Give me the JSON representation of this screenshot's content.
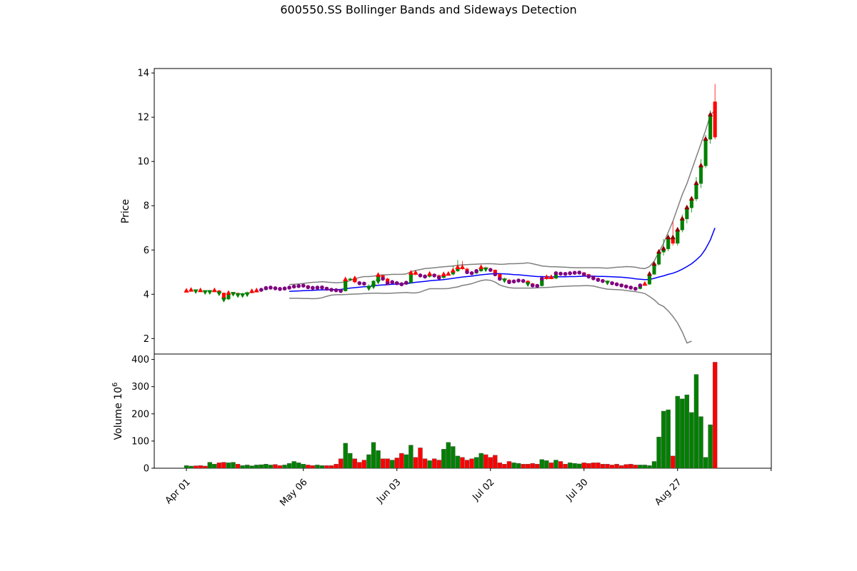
{
  "chart_data": [
    {
      "type": "candlestick",
      "title": "600550.SS Bollinger Bands and Sideways Detection",
      "ylabel": "Price",
      "ylim": [
        1.3,
        14.2
      ],
      "yticks": [
        2,
        4,
        6,
        8,
        10,
        12,
        14
      ],
      "xtick_labels": [
        "Apr 01",
        "May 06",
        "Jun 03",
        "Jul 02",
        "Jul 30",
        "Aug 27",
        ""
      ],
      "xtick_index": [
        0,
        25,
        45,
        65,
        85,
        105,
        125
      ],
      "grid": false,
      "colors": {
        "up": "#008000",
        "down": "#ff0000",
        "middle_band": "#0000ff",
        "outer_band": "#808080",
        "buy_marker": "#ff0000",
        "sell_marker": "#008000",
        "sideways_marker": "#800080",
        "breakout_marker": "#8b0000"
      },
      "close": [
        4.14,
        4.18,
        4.16,
        4.14,
        4.12,
        4.15,
        4.16,
        4.06,
        3.78,
        4.04,
        4.05,
        3.98,
        4.02,
        4.08,
        4.12,
        4.15,
        4.2,
        4.28,
        4.3,
        4.27,
        4.24,
        4.26,
        4.3,
        4.35,
        4.37,
        4.39,
        4.32,
        4.29,
        4.3,
        4.31,
        4.25,
        4.2,
        4.18,
        4.15,
        4.65,
        4.7,
        4.55,
        4.5,
        4.48,
        4.38,
        4.6,
        4.85,
        4.7,
        4.5,
        4.55,
        4.5,
        4.45,
        4.52,
        4.95,
        4.9,
        4.85,
        4.8,
        4.9,
        4.85,
        4.75,
        4.88,
        4.9,
        5.05,
        5.2,
        5.15,
        5.0,
        4.95,
        5.05,
        5.2,
        5.15,
        5.1,
        4.9,
        4.7,
        4.65,
        4.55,
        4.58,
        4.62,
        4.6,
        4.48,
        4.4,
        4.38,
        4.7,
        4.75,
        4.72,
        4.95,
        4.93,
        4.92,
        4.95,
        4.97,
        4.98,
        4.9,
        4.8,
        4.72,
        4.65,
        4.6,
        4.55,
        4.5,
        4.45,
        4.4,
        4.35,
        4.3,
        4.25,
        4.4,
        4.45,
        4.9,
        5.35,
        5.9,
        6.05,
        6.55,
        6.3,
        6.9,
        7.4,
        7.9,
        8.3,
        9.0,
        9.8,
        11.0,
        12.1,
        11.1
      ],
      "open": [
        4.14,
        4.16,
        4.18,
        4.16,
        4.14,
        4.12,
        4.15,
        4.16,
        4.06,
        3.78,
        4.04,
        4.05,
        3.98,
        4.02,
        4.08,
        4.12,
        4.15,
        4.2,
        4.28,
        4.3,
        4.27,
        4.24,
        4.26,
        4.3,
        4.35,
        4.37,
        4.39,
        4.32,
        4.29,
        4.3,
        4.31,
        4.25,
        4.2,
        4.18,
        4.15,
        4.65,
        4.7,
        4.55,
        4.5,
        4.3,
        4.38,
        4.6,
        4.85,
        4.7,
        4.5,
        4.55,
        4.5,
        4.45,
        4.52,
        4.95,
        4.9,
        4.85,
        4.8,
        4.9,
        4.85,
        4.75,
        4.88,
        4.9,
        5.05,
        5.2,
        5.15,
        5.0,
        4.95,
        5.05,
        5.2,
        5.15,
        5.1,
        4.9,
        4.7,
        4.65,
        4.55,
        4.58,
        4.62,
        4.6,
        4.48,
        4.4,
        4.38,
        4.7,
        4.75,
        4.72,
        4.95,
        4.93,
        4.92,
        4.95,
        4.97,
        4.98,
        4.9,
        4.8,
        4.72,
        4.65,
        4.6,
        4.55,
        4.5,
        4.45,
        4.4,
        4.35,
        4.3,
        4.25,
        4.4,
        4.45,
        4.9,
        5.35,
        5.9,
        6.05,
        6.55,
        6.3,
        6.9,
        7.4,
        7.9,
        8.3,
        9.0,
        9.8,
        11.0,
        12.7
      ],
      "high": [
        4.2,
        4.22,
        4.22,
        4.2,
        4.18,
        4.2,
        4.22,
        4.2,
        4.08,
        4.1,
        4.1,
        4.08,
        4.06,
        4.12,
        4.16,
        4.2,
        4.24,
        4.32,
        4.34,
        4.33,
        4.3,
        4.3,
        4.34,
        4.38,
        4.4,
        4.42,
        4.42,
        4.35,
        4.33,
        4.35,
        4.34,
        4.28,
        4.24,
        4.22,
        4.7,
        4.75,
        4.73,
        4.6,
        4.55,
        4.45,
        4.65,
        4.95,
        4.88,
        4.75,
        4.6,
        4.6,
        4.55,
        4.56,
        5.05,
        5.0,
        4.95,
        4.9,
        4.95,
        4.92,
        4.9,
        4.93,
        4.98,
        5.3,
        5.55,
        5.5,
        5.2,
        5.05,
        5.1,
        5.25,
        5.25,
        5.2,
        5.12,
        4.95,
        4.75,
        4.7,
        4.62,
        4.66,
        4.68,
        4.64,
        4.52,
        4.45,
        4.75,
        4.8,
        4.78,
        5.0,
        4.98,
        4.97,
        4.99,
        5.01,
        5.02,
        5.0,
        4.92,
        4.84,
        4.76,
        4.68,
        4.63,
        4.58,
        4.53,
        4.48,
        4.42,
        4.38,
        4.33,
        4.44,
        4.5,
        4.95,
        5.45,
        6.0,
        6.5,
        6.7,
        7.3,
        7.0,
        7.6,
        8.0,
        8.4,
        9.3,
        10.1,
        11.2,
        12.3,
        13.5
      ],
      "low": [
        4.1,
        4.12,
        4.12,
        4.1,
        4.08,
        4.08,
        4.1,
        4.02,
        3.7,
        3.74,
        3.98,
        3.94,
        3.94,
        3.98,
        4.04,
        4.08,
        4.12,
        4.18,
        4.25,
        4.22,
        4.2,
        4.2,
        4.24,
        4.28,
        4.32,
        4.34,
        4.28,
        4.26,
        4.26,
        4.27,
        4.22,
        4.17,
        4.14,
        4.12,
        4.12,
        4.6,
        4.5,
        4.45,
        4.44,
        4.25,
        4.34,
        4.55,
        4.65,
        4.45,
        4.45,
        4.45,
        4.4,
        4.42,
        4.48,
        4.85,
        4.8,
        4.75,
        4.75,
        4.8,
        4.7,
        4.7,
        4.85,
        4.85,
        5.0,
        5.1,
        4.95,
        4.9,
        4.9,
        5.0,
        5.1,
        5.05,
        4.85,
        4.65,
        4.6,
        4.5,
        4.52,
        4.55,
        4.55,
        4.45,
        4.35,
        4.33,
        4.35,
        4.65,
        4.68,
        4.68,
        4.88,
        4.88,
        4.88,
        4.9,
        4.92,
        4.88,
        4.78,
        4.7,
        4.62,
        4.57,
        4.52,
        4.47,
        4.42,
        4.37,
        4.32,
        4.27,
        4.22,
        4.22,
        4.38,
        4.43,
        4.88,
        5.3,
        5.75,
        5.95,
        6.2,
        6.2,
        6.8,
        7.2,
        7.7,
        8.2,
        8.8,
        9.7,
        10.8,
        11.0
      ],
      "middle_band": [
        null,
        null,
        null,
        null,
        null,
        null,
        null,
        null,
        null,
        null,
        null,
        null,
        null,
        null,
        null,
        null,
        null,
        null,
        null,
        null,
        null,
        null,
        4.13,
        4.14,
        4.15,
        4.16,
        4.17,
        4.18,
        4.19,
        4.2,
        4.2,
        4.21,
        4.21,
        4.22,
        4.25,
        4.28,
        4.3,
        4.32,
        4.34,
        4.35,
        4.38,
        4.41,
        4.42,
        4.43,
        4.45,
        4.46,
        4.47,
        4.48,
        4.51,
        4.54,
        4.56,
        4.58,
        4.61,
        4.63,
        4.64,
        4.66,
        4.69,
        4.72,
        4.75,
        4.78,
        4.8,
        4.82,
        4.85,
        4.88,
        4.9,
        4.92,
        4.93,
        4.93,
        4.92,
        4.91,
        4.89,
        4.88,
        4.86,
        4.84,
        4.82,
        4.8,
        4.8,
        4.79,
        4.78,
        4.79,
        4.79,
        4.79,
        4.8,
        4.8,
        4.81,
        4.82,
        4.82,
        4.82,
        4.81,
        4.81,
        4.8,
        4.79,
        4.78,
        4.77,
        4.75,
        4.73,
        4.7,
        4.68,
        4.66,
        4.67,
        4.72,
        4.78,
        4.83,
        4.9,
        4.95,
        5.03,
        5.13,
        5.25,
        5.38,
        5.55,
        5.75,
        6.05,
        6.45,
        7.0
      ],
      "upper_band": [
        null,
        null,
        null,
        null,
        null,
        null,
        null,
        null,
        null,
        null,
        null,
        null,
        null,
        null,
        null,
        null,
        null,
        null,
        null,
        null,
        null,
        null,
        4.44,
        4.45,
        4.47,
        4.49,
        4.52,
        4.54,
        4.55,
        4.57,
        4.55,
        4.53,
        4.52,
        4.53,
        4.55,
        4.62,
        4.7,
        4.76,
        4.8,
        4.8,
        4.82,
        4.85,
        4.88,
        4.88,
        4.9,
        4.9,
        4.9,
        4.92,
        5.02,
        5.08,
        5.12,
        5.16,
        5.18,
        5.2,
        5.22,
        5.24,
        5.26,
        5.28,
        5.31,
        5.33,
        5.34,
        5.35,
        5.36,
        5.37,
        5.38,
        5.38,
        5.37,
        5.35,
        5.36,
        5.38,
        5.38,
        5.39,
        5.4,
        5.42,
        5.38,
        5.33,
        5.28,
        5.26,
        5.24,
        5.24,
        5.23,
        5.22,
        5.21,
        5.2,
        5.2,
        5.2,
        5.2,
        5.2,
        5.2,
        5.19,
        5.18,
        5.2,
        5.22,
        5.23,
        5.25,
        5.24,
        5.22,
        5.18,
        5.16,
        5.25,
        5.5,
        5.9,
        6.3,
        6.8,
        7.3,
        7.9,
        8.5,
        9.0,
        9.6,
        10.2,
        10.8,
        11.4,
        12.1,
        12.3
      ],
      "lower_band": [
        null,
        null,
        null,
        null,
        null,
        null,
        null,
        null,
        null,
        null,
        null,
        null,
        null,
        null,
        null,
        null,
        null,
        null,
        null,
        null,
        null,
        null,
        3.82,
        3.82,
        3.82,
        3.81,
        3.81,
        3.8,
        3.81,
        3.84,
        3.91,
        3.96,
        3.98,
        3.98,
        3.99,
        4.0,
        4.01,
        4.02,
        4.03,
        4.04,
        4.05,
        4.05,
        4.04,
        4.04,
        4.05,
        4.06,
        4.07,
        4.08,
        4.06,
        4.06,
        4.1,
        4.18,
        4.25,
        4.25,
        4.25,
        4.25,
        4.26,
        4.3,
        4.33,
        4.4,
        4.43,
        4.48,
        4.55,
        4.62,
        4.65,
        4.63,
        4.55,
        4.42,
        4.35,
        4.3,
        4.28,
        4.28,
        4.28,
        4.28,
        4.28,
        4.29,
        4.3,
        4.31,
        4.32,
        4.34,
        4.35,
        4.36,
        4.37,
        4.38,
        4.38,
        4.39,
        4.39,
        4.37,
        4.32,
        4.27,
        4.23,
        4.22,
        4.21,
        4.2,
        4.17,
        4.14,
        4.12,
        4.08,
        4.03,
        3.9,
        3.75,
        3.55,
        3.45,
        3.25,
        3.0,
        2.7,
        2.3,
        1.8,
        1.88,
        null,
        null,
        null,
        null,
        null
      ],
      "signals": {
        "buy": [
          0,
          1,
          3,
          6,
          9,
          14,
          15,
          34,
          36,
          41,
          48,
          49,
          52,
          55,
          56,
          57,
          58,
          59,
          63,
          77,
          78,
          98
        ],
        "sell": [
          2,
          4,
          5,
          7,
          8,
          10,
          11,
          12,
          13,
          39,
          40,
          41,
          64,
          68,
          73,
          90
        ],
        "sideways": [
          16,
          17,
          18,
          19,
          20,
          21,
          22,
          23,
          24,
          25,
          26,
          27,
          28,
          29,
          30,
          31,
          32,
          33,
          37,
          38,
          42,
          43,
          44,
          45,
          46,
          47,
          50,
          51,
          53,
          54,
          60,
          61,
          62,
          65,
          66,
          67,
          69,
          70,
          71,
          72,
          74,
          75,
          76,
          79,
          80,
          81,
          82,
          83,
          84,
          85,
          86,
          87,
          88,
          89,
          91,
          92,
          93,
          94,
          95,
          96,
          97
        ],
        "breakout": [
          99,
          100,
          101,
          102,
          103,
          104,
          105,
          106,
          107,
          108,
          109,
          110,
          111,
          112
        ]
      }
    },
    {
      "type": "bar",
      "ylabel": "Volume",
      "ylabel_exp": "6",
      "ylim": [
        0,
        420
      ],
      "yticks": [
        0,
        100,
        200,
        300,
        400
      ],
      "values": [
        10,
        8,
        9,
        10,
        8,
        22,
        15,
        20,
        22,
        20,
        22,
        15,
        10,
        12,
        9,
        12,
        13,
        15,
        12,
        14,
        10,
        12,
        18,
        25,
        20,
        15,
        12,
        10,
        12,
        10,
        10,
        10,
        15,
        35,
        92,
        55,
        35,
        22,
        30,
        50,
        95,
        65,
        35,
        35,
        30,
        38,
        55,
        50,
        85,
        40,
        75,
        35,
        28,
        35,
        30,
        70,
        95,
        80,
        45,
        40,
        30,
        35,
        40,
        55,
        50,
        40,
        48,
        20,
        15,
        25,
        20,
        18,
        15,
        15,
        18,
        15,
        32,
        28,
        20,
        30,
        25,
        15,
        20,
        18,
        16,
        20,
        18,
        20,
        20,
        15,
        15,
        12,
        15,
        10,
        14,
        15,
        12,
        12,
        12,
        10,
        25,
        115,
        210,
        215,
        45,
        265,
        255,
        270,
        205,
        345,
        190,
        40,
        160,
        390
      ],
      "colors": {
        "up": "#008000",
        "down": "#ff0000"
      }
    }
  ]
}
